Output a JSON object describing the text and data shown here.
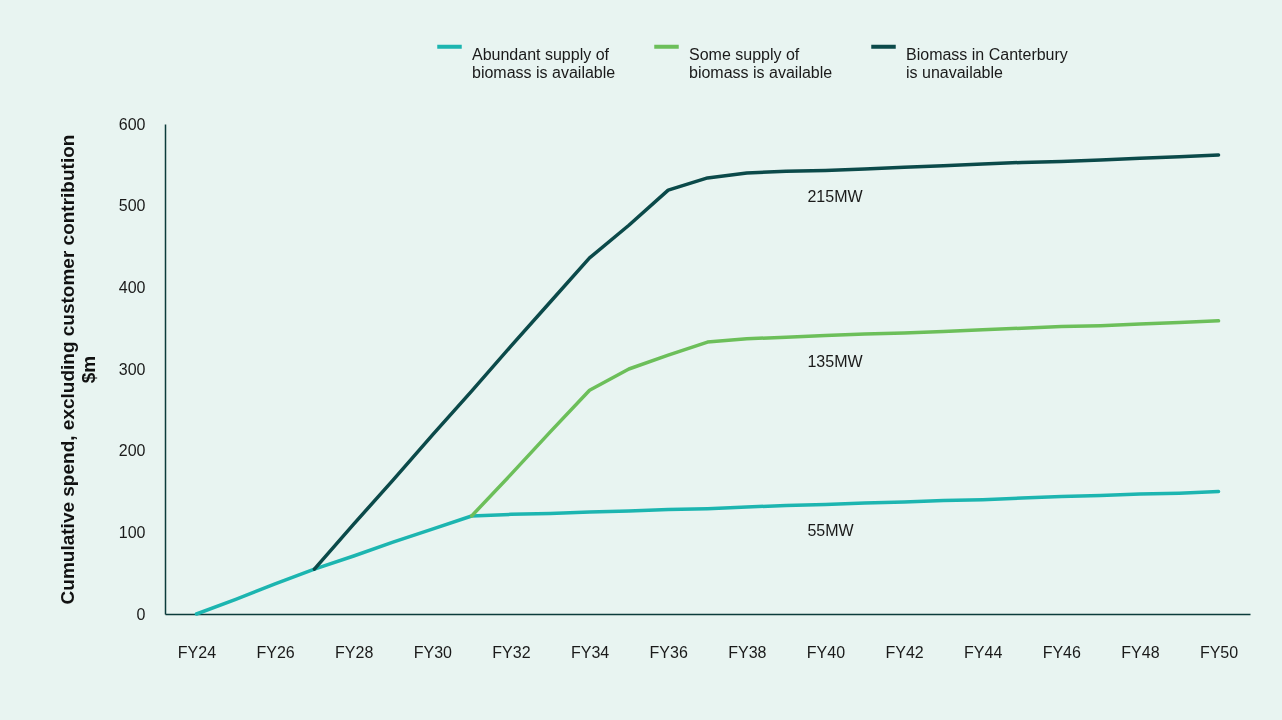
{
  "chart_data": {
    "type": "line",
    "ylabel": "Cumulative spend, excluding customer contribution\n$m",
    "categories": [
      "FY24",
      null,
      "FY26",
      null,
      "FY28",
      null,
      "FY30",
      null,
      "FY32",
      null,
      "FY34",
      null,
      "FY36",
      null,
      "FY38",
      null,
      "FY40",
      null,
      "FY42",
      null,
      "FY44",
      null,
      "FY46",
      null,
      "FY48",
      null,
      "FY50"
    ],
    "ylim": [
      0,
      600
    ],
    "yticks": [
      0,
      100,
      200,
      300,
      400,
      500,
      600
    ],
    "grid": false,
    "legend": "top right",
    "marker": "none",
    "line_style": "solid",
    "series": [
      {
        "name": "Abundant supply of\nbiomass is available",
        "color": "#1cb5b0",
        "values": [
          0,
          18,
          37,
          55,
          71,
          88,
          104,
          120,
          122,
          123,
          125,
          126,
          128,
          129,
          131,
          133,
          134,
          136,
          137,
          139,
          140,
          142,
          144,
          145,
          147,
          148,
          150
        ]
      },
      {
        "name": "Some supply of\nbiomass is available",
        "color": "#6cbf5a",
        "values": [
          null,
          null,
          null,
          null,
          null,
          null,
          null,
          120,
          171,
          223,
          274,
          300,
          317,
          333,
          337,
          339,
          341,
          343,
          344,
          346,
          348,
          350,
          352,
          353,
          355,
          357,
          359
        ]
      },
      {
        "name": "Biomass in Canterbury\nis unavailable",
        "color": "#0b4a4a",
        "values": [
          null,
          null,
          null,
          55,
          110,
          164,
          219,
          273,
          328,
          382,
          436,
          476,
          519,
          534,
          540,
          542,
          543,
          545,
          547,
          549,
          551,
          553,
          554,
          556,
          558,
          560,
          562
        ]
      }
    ],
    "annotations": [
      "215MW",
      "135MW",
      "55MW"
    ]
  }
}
